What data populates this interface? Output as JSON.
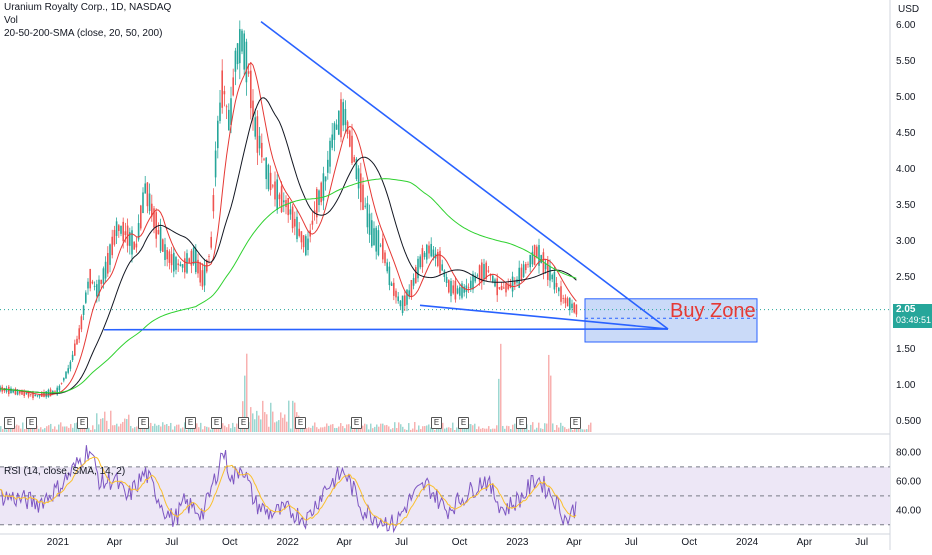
{
  "legend": {
    "title": "Uranium Royalty Corp., 1D, NASDAQ",
    "vol": "Vol",
    "sma": "20-50-200-SMA (close, 20, 50, 200)",
    "rsi": "RSI (14, close, SMA, 14, 2)"
  },
  "currency": "USD",
  "price_tag": {
    "price": "2.05",
    "timer": "03:49:51"
  },
  "buy_zone_label": "Buy Zone",
  "earnings_marker": "E",
  "colors": {
    "up": "#26a69a",
    "down": "#ef5350",
    "sma20": "#e53935",
    "sma50": "#131722",
    "sma200": "#2fd12f",
    "trendline": "#2962ff",
    "buyzone_fill": "#b3cbf5",
    "rsi_line": "#7e57c2",
    "rsi_signal": "#fbc02d"
  },
  "chart_data": [
    {
      "type": "line",
      "title": "Uranium Royalty Corp., 1D, NASDAQ",
      "ylabel": "USD",
      "ylim": [
        0.35,
        6.35
      ],
      "y_ticks": [
        "6.00",
        "5.50",
        "5.00",
        "4.50",
        "4.00",
        "3.50",
        "3.00",
        "2.50",
        "2.00",
        "1.50",
        "1.00",
        "0.500"
      ],
      "x_ticks": [
        "2021",
        "Apr",
        "Jul",
        "Oct",
        "2022",
        "Apr",
        "Jul",
        "Oct",
        "2023",
        "Apr",
        "Jul",
        "Oct",
        "2024",
        "Apr",
        "Jul"
      ],
      "x_tick_dates": [
        "2021-01-01",
        "2021-04-01",
        "2021-07-01",
        "2021-10-01",
        "2022-01-01",
        "2022-04-01",
        "2022-07-01",
        "2022-10-01",
        "2023-01-01",
        "2023-04-01",
        "2023-07-01",
        "2023-10-01",
        "2024-01-01",
        "2024-04-01",
        "2024-07-01"
      ],
      "series": [
        {
          "name": "close",
          "points": [
            [
              "2020-10-01",
              0.95
            ],
            [
              "2020-11-01",
              0.9
            ],
            [
              "2020-12-01",
              0.85
            ],
            [
              "2021-01-01",
              0.92
            ],
            [
              "2021-01-20",
              1.25
            ],
            [
              "2021-02-05",
              1.75
            ],
            [
              "2021-02-20",
              2.5
            ],
            [
              "2021-03-05",
              2.3
            ],
            [
              "2021-03-20",
              2.65
            ],
            [
              "2021-04-05",
              3.2
            ],
            [
              "2021-04-20",
              3.1
            ],
            [
              "2021-05-05",
              2.9
            ],
            [
              "2021-05-20",
              3.75
            ],
            [
              "2021-06-05",
              3.25
            ],
            [
              "2021-06-20",
              2.85
            ],
            [
              "2021-07-05",
              2.7
            ],
            [
              "2021-07-20",
              2.65
            ],
            [
              "2021-08-05",
              2.8
            ],
            [
              "2021-08-20",
              2.45
            ],
            [
              "2021-09-01",
              2.9
            ],
            [
              "2021-09-10",
              4.3
            ],
            [
              "2021-09-20",
              5.2
            ],
            [
              "2021-10-01",
              4.6
            ],
            [
              "2021-10-10",
              5.5
            ],
            [
              "2021-10-20",
              5.8
            ],
            [
              "2021-11-01",
              5.3
            ],
            [
              "2021-11-10",
              4.6
            ],
            [
              "2021-11-20",
              4.3
            ],
            [
              "2021-12-01",
              3.9
            ],
            [
              "2021-12-15",
              3.65
            ],
            [
              "2022-01-01",
              3.5
            ],
            [
              "2022-01-15",
              3.2
            ],
            [
              "2022-02-01",
              2.9
            ],
            [
              "2022-02-15",
              3.5
            ],
            [
              "2022-03-01",
              3.8
            ],
            [
              "2022-03-15",
              4.5
            ],
            [
              "2022-04-01",
              4.8
            ],
            [
              "2022-04-15",
              4.2
            ],
            [
              "2022-05-01",
              3.6
            ],
            [
              "2022-05-15",
              3.1
            ],
            [
              "2022-06-01",
              2.9
            ],
            [
              "2022-06-15",
              2.4
            ],
            [
              "2022-07-01",
              2.1
            ],
            [
              "2022-07-15",
              2.3
            ],
            [
              "2022-08-01",
              2.75
            ],
            [
              "2022-08-15",
              2.9
            ],
            [
              "2022-09-01",
              2.7
            ],
            [
              "2022-09-15",
              2.35
            ],
            [
              "2022-10-01",
              2.3
            ],
            [
              "2022-10-15",
              2.35
            ],
            [
              "2022-11-01",
              2.55
            ],
            [
              "2022-11-15",
              2.6
            ],
            [
              "2022-12-01",
              2.35
            ],
            [
              "2022-12-15",
              2.35
            ],
            [
              "2023-01-01",
              2.45
            ],
            [
              "2023-01-15",
              2.65
            ],
            [
              "2023-02-01",
              2.85
            ],
            [
              "2023-02-15",
              2.65
            ],
            [
              "2023-03-01",
              2.45
            ],
            [
              "2023-03-15",
              2.2
            ],
            [
              "2023-04-05",
              2.05
            ]
          ]
        }
      ]
    },
    {
      "type": "line",
      "title": "RSI (14, close, SMA, 14, 2)",
      "ylim": [
        25,
        90
      ],
      "y_ticks": [
        "80.00",
        "60.00",
        "40.00"
      ],
      "bands": [
        70,
        50,
        30
      ],
      "series": [
        {
          "name": "RSI",
          "points": [
            [
              "2020-10-01",
              50
            ],
            [
              "2020-11-01",
              48
            ],
            [
              "2020-12-01",
              45
            ],
            [
              "2021-01-01",
              55
            ],
            [
              "2021-02-01",
              72
            ],
            [
              "2021-02-20",
              83
            ],
            [
              "2021-03-10",
              58
            ],
            [
              "2021-04-01",
              62
            ],
            [
              "2021-04-20",
              48
            ],
            [
              "2021-05-20",
              66
            ],
            [
              "2021-06-20",
              40
            ],
            [
              "2021-07-05",
              33
            ],
            [
              "2021-07-20",
              45
            ],
            [
              "2021-08-20",
              38
            ],
            [
              "2021-09-10",
              65
            ],
            [
              "2021-09-20",
              82
            ],
            [
              "2021-10-05",
              60
            ],
            [
              "2021-10-20",
              72
            ],
            [
              "2021-11-10",
              45
            ],
            [
              "2021-12-01",
              38
            ],
            [
              "2022-01-01",
              40
            ],
            [
              "2022-02-01",
              34
            ],
            [
              "2022-03-01",
              55
            ],
            [
              "2022-04-01",
              67
            ],
            [
              "2022-05-01",
              40
            ],
            [
              "2022-06-01",
              33
            ],
            [
              "2022-06-20",
              30
            ],
            [
              "2022-07-15",
              48
            ],
            [
              "2022-08-10",
              58
            ],
            [
              "2022-09-10",
              40
            ],
            [
              "2022-10-10",
              50
            ],
            [
              "2022-11-10",
              62
            ],
            [
              "2022-12-10",
              40
            ],
            [
              "2023-01-10",
              50
            ],
            [
              "2023-02-01",
              63
            ],
            [
              "2023-03-01",
              48
            ],
            [
              "2023-03-20",
              33
            ],
            [
              "2023-04-05",
              43
            ]
          ]
        }
      ]
    }
  ]
}
